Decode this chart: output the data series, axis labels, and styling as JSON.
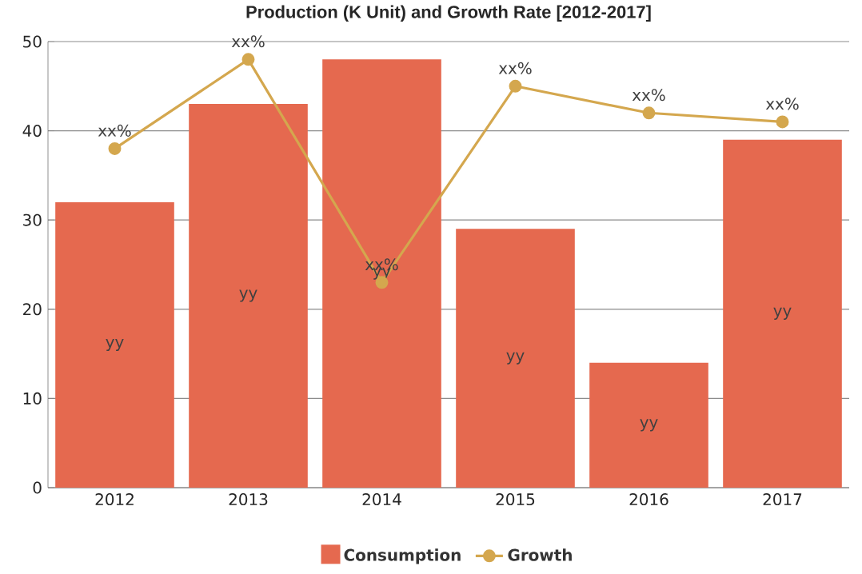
{
  "chart_data": {
    "type": "bar",
    "title": "Production (K Unit) and Growth Rate [2012-2017]",
    "categories": [
      "2012",
      "2013",
      "2014",
      "2015",
      "2016",
      "2017"
    ],
    "series": [
      {
        "name": "Consumption",
        "color": "#e5694f",
        "values": [
          32,
          43,
          48,
          29,
          14,
          39
        ],
        "value_labels": [
          "yy",
          "yy",
          "yy",
          "yy",
          "yy",
          "yy"
        ]
      },
      {
        "name": "Growth",
        "type": "line",
        "color": "#d4a74e",
        "values": [
          38,
          48,
          23,
          45,
          42,
          41
        ],
        "value_labels": [
          "xx%",
          "xx%",
          "xx%",
          "xx%",
          "xx%",
          "xx%"
        ]
      }
    ],
    "ylim": [
      0,
      50
    ],
    "yticks": [
      0,
      10,
      20,
      30,
      40,
      50
    ],
    "grid": "y",
    "legend": "bottom",
    "marker": "circle"
  }
}
